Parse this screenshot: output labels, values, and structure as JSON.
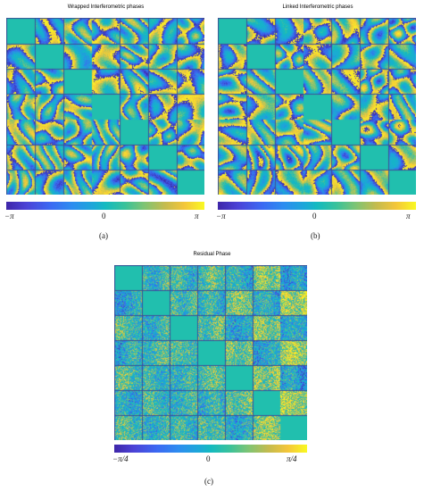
{
  "panels": {
    "a": {
      "title": "Wrapped Interferometric phases",
      "scale_min": "−π",
      "scale_mid": "0",
      "scale_max": "π",
      "caption": "(a)",
      "texture": "wrapped"
    },
    "b": {
      "title": "Linked Interferometric phases",
      "scale_min": "−π",
      "scale_mid": "0",
      "scale_max": "π",
      "caption": "(b)",
      "texture": "wrapped"
    },
    "c": {
      "title": "Residual Phase",
      "scale_min": "−π/4",
      "scale_mid": "0",
      "scale_max": "π/4",
      "caption": "(c)",
      "texture": "residual"
    }
  },
  "grid": {
    "rows": 7,
    "cols": 7,
    "diagonal_fill": "#21bfae"
  },
  "colormap": [
    "#3e26a8",
    "#3c68f2",
    "#1ca8d8",
    "#13bac0",
    "#81c472",
    "#f4c63a",
    "#f9f921"
  ]
}
